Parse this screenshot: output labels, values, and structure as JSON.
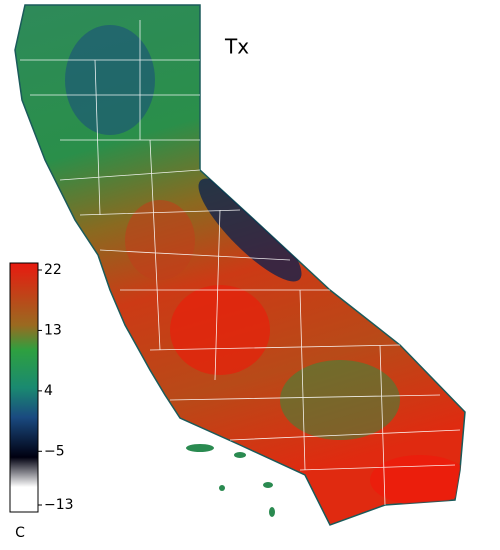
{
  "map": {
    "title": "Tx",
    "colorbar": {
      "ticks": [
        22,
        13,
        4,
        {
          "value": -5,
          "label": "−5"
        },
        {
          "value": -13,
          "label": "−13"
        }
      ],
      "unit": "C"
    }
  }
}
